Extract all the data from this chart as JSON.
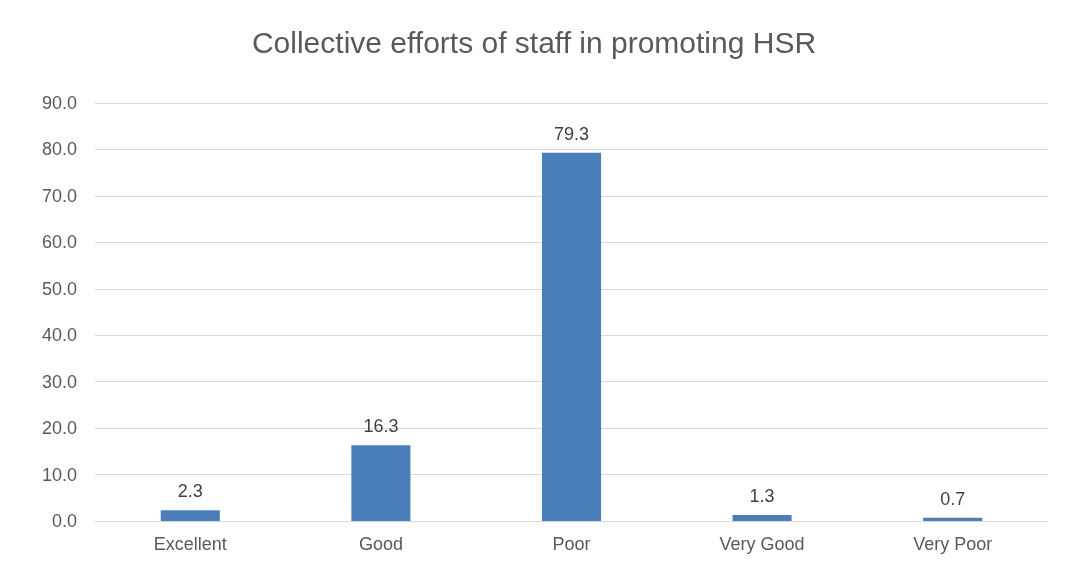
{
  "chart_data": {
    "type": "bar",
    "title": "Collective efforts of staff in promoting HSR",
    "categories": [
      "Excellent",
      "Good",
      "Poor",
      "Very Good",
      "Very Poor"
    ],
    "values": [
      2.3,
      16.3,
      79.3,
      1.3,
      0.7
    ],
    "color": "#4a7ebb",
    "ylim": [
      0,
      90
    ],
    "yticks": [
      {
        "value": 0,
        "label": "0.0"
      },
      {
        "value": 10,
        "label": "10.0"
      },
      {
        "value": 20,
        "label": "20.0"
      },
      {
        "value": 30,
        "label": "30.0"
      },
      {
        "value": 40,
        "label": "40.0"
      },
      {
        "value": 50,
        "label": "50.0"
      },
      {
        "value": 60,
        "label": "60.0"
      },
      {
        "value": 70,
        "label": "70.0"
      },
      {
        "value": 80,
        "label": "80.0"
      },
      {
        "value": 90,
        "label": "90.0"
      }
    ],
    "grid": true,
    "data_labels": true
  }
}
